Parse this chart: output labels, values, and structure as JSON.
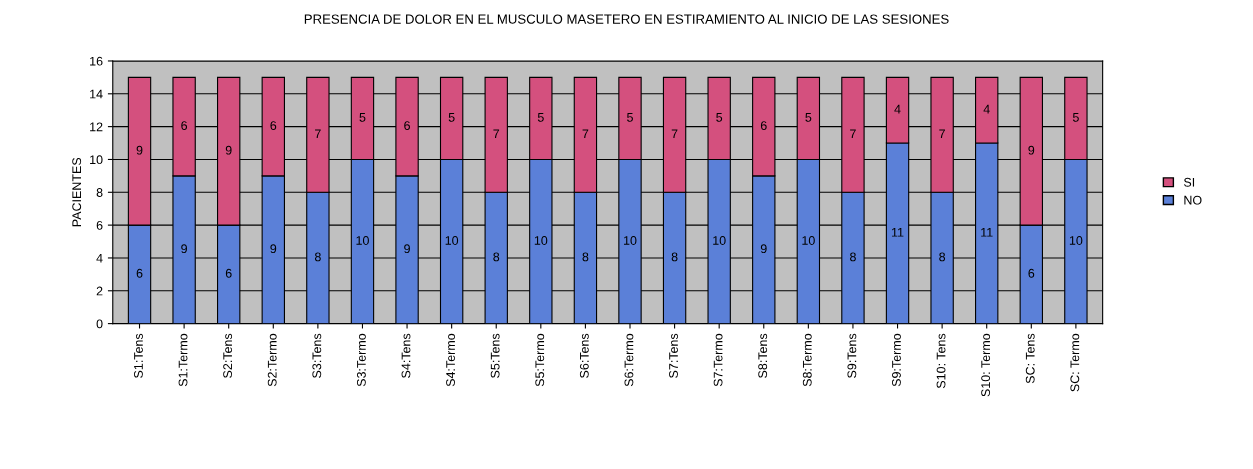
{
  "chart_data": {
    "type": "bar",
    "title": "PRESENCIA DE DOLOR EN EL MUSCULO MASETERO EN ESTIRAMIENTO AL INICIO DE LAS SESIONES",
    "ylabel": "PACIENTES",
    "categories": [
      "S1:Tens",
      "S1:Termo",
      "S2:Tens",
      "S2:Termo",
      "S3:Tens",
      "S3:Termo",
      "S4:Tens",
      "S4:Termo",
      "S5:Tens",
      "S5:Termo",
      "S6:Tens",
      "S6:Termo",
      "S7:Tens",
      "S7:Termo",
      "S8:Tens",
      "S8:Termo",
      "S9:Tens",
      "S9:Termo",
      "S10: Tens",
      "S10: Termo",
      "SC: Tens",
      "SC: Termo"
    ],
    "stacked": true,
    "series": [
      {
        "name": "NO",
        "color": "#5b80d8",
        "values": [
          6,
          9,
          6,
          9,
          8,
          10,
          9,
          10,
          8,
          10,
          8,
          10,
          8,
          10,
          9,
          10,
          8,
          11,
          8,
          11,
          6,
          10
        ]
      },
      {
        "name": "SI",
        "color": "#d4507e",
        "values": [
          9,
          6,
          9,
          6,
          7,
          5,
          6,
          5,
          7,
          5,
          7,
          5,
          7,
          5,
          6,
          5,
          7,
          4,
          7,
          4,
          9,
          5
        ]
      }
    ],
    "ylim": [
      0,
      16
    ],
    "yticks": [
      0,
      2,
      4,
      6,
      8,
      10,
      12,
      14,
      16
    ],
    "grid": "y",
    "legend": "right",
    "data_labels": true
  }
}
